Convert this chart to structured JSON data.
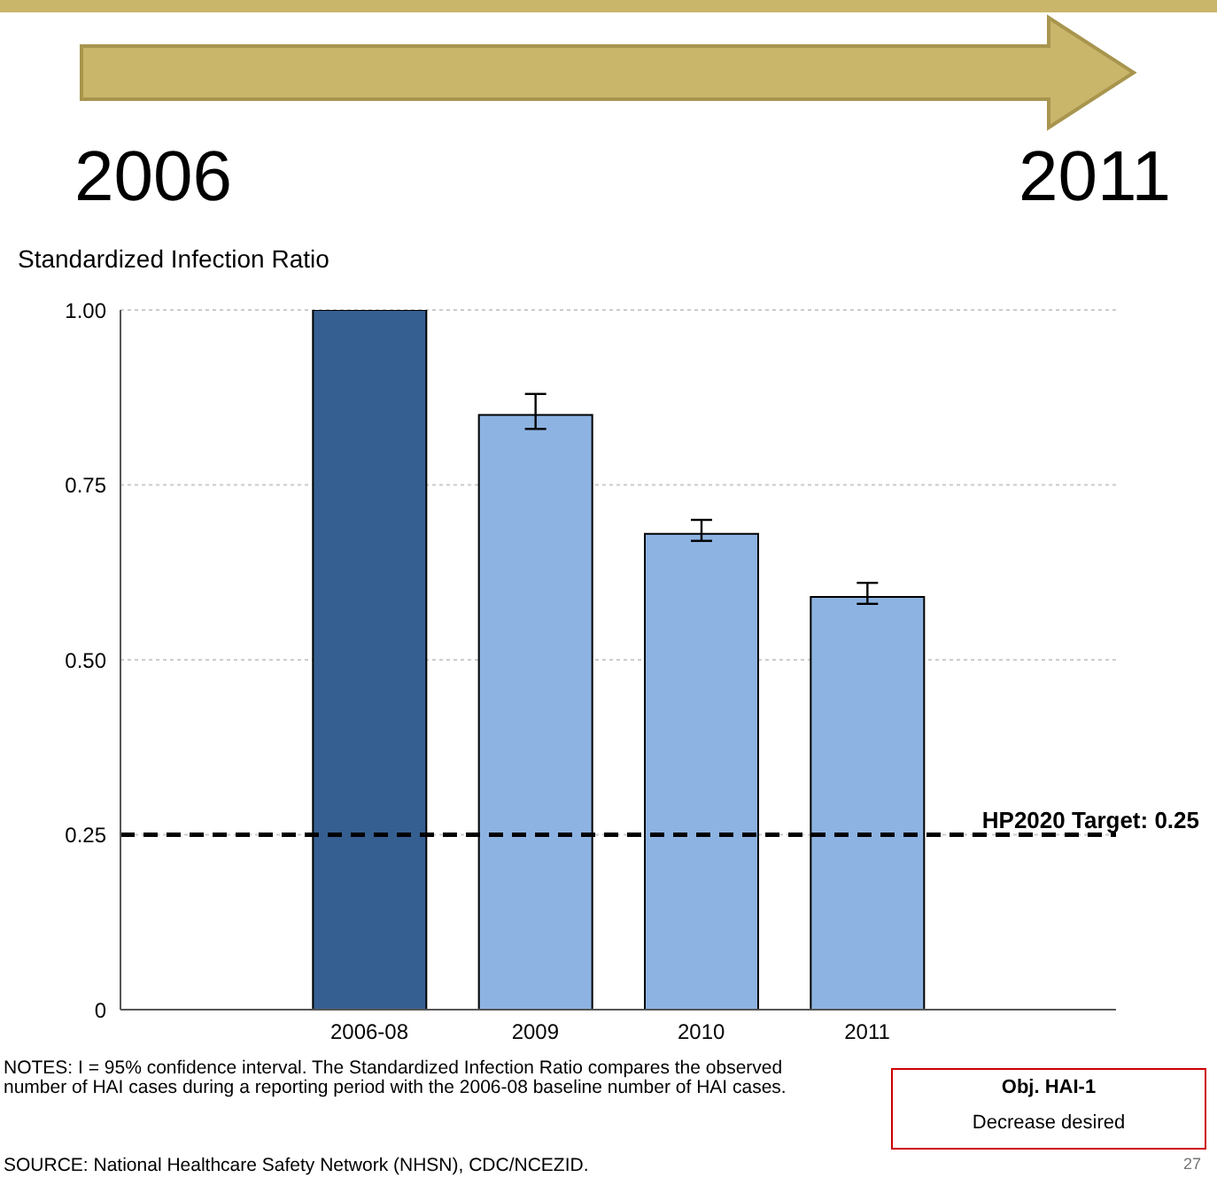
{
  "chart_data": {
    "type": "bar",
    "ylabel": "Standardized Infection Ratio",
    "categories": [
      null,
      "2006-08",
      "2009",
      "2010",
      "2011",
      null
    ],
    "values": [
      null,
      1.0,
      0.85,
      0.68,
      0.59,
      null
    ],
    "colors": [
      "#8db3e2",
      "#365f91",
      "#8db3e2",
      "#8db3e2",
      "#8db3e2",
      "#8db3e2"
    ],
    "errors": [
      null,
      null,
      [
        0.83,
        0.88
      ],
      [
        0.67,
        0.7
      ],
      [
        0.58,
        0.61
      ],
      null
    ],
    "ylim": [
      0,
      1
    ],
    "yticks": [
      0,
      0.25,
      {
        "value": 0.5,
        "label": "0.50"
      },
      0.75,
      {
        "value": 1,
        "label": "1.00"
      }
    ],
    "grid": "y",
    "ref_lines": [
      {
        "axis": "y",
        "value": 0.25,
        "label": "HP2020 Target: 0.25",
        "color": "#000000",
        "line_style": "dashed"
      }
    ],
    "annotations": [
      "2006",
      "2011",
      "NOTES: I = 95% confidence interval. The Standardized Infection Ratio compares the observed number of HAI cases during a reporting period with the 2006-08 baseline number of HAI cases.",
      "SOURCE: National Healthcare Safety Network (NHSN), CDC/NCEZID.",
      "Obj. HAI-1",
      "Decrease desired",
      "27"
    ]
  }
}
